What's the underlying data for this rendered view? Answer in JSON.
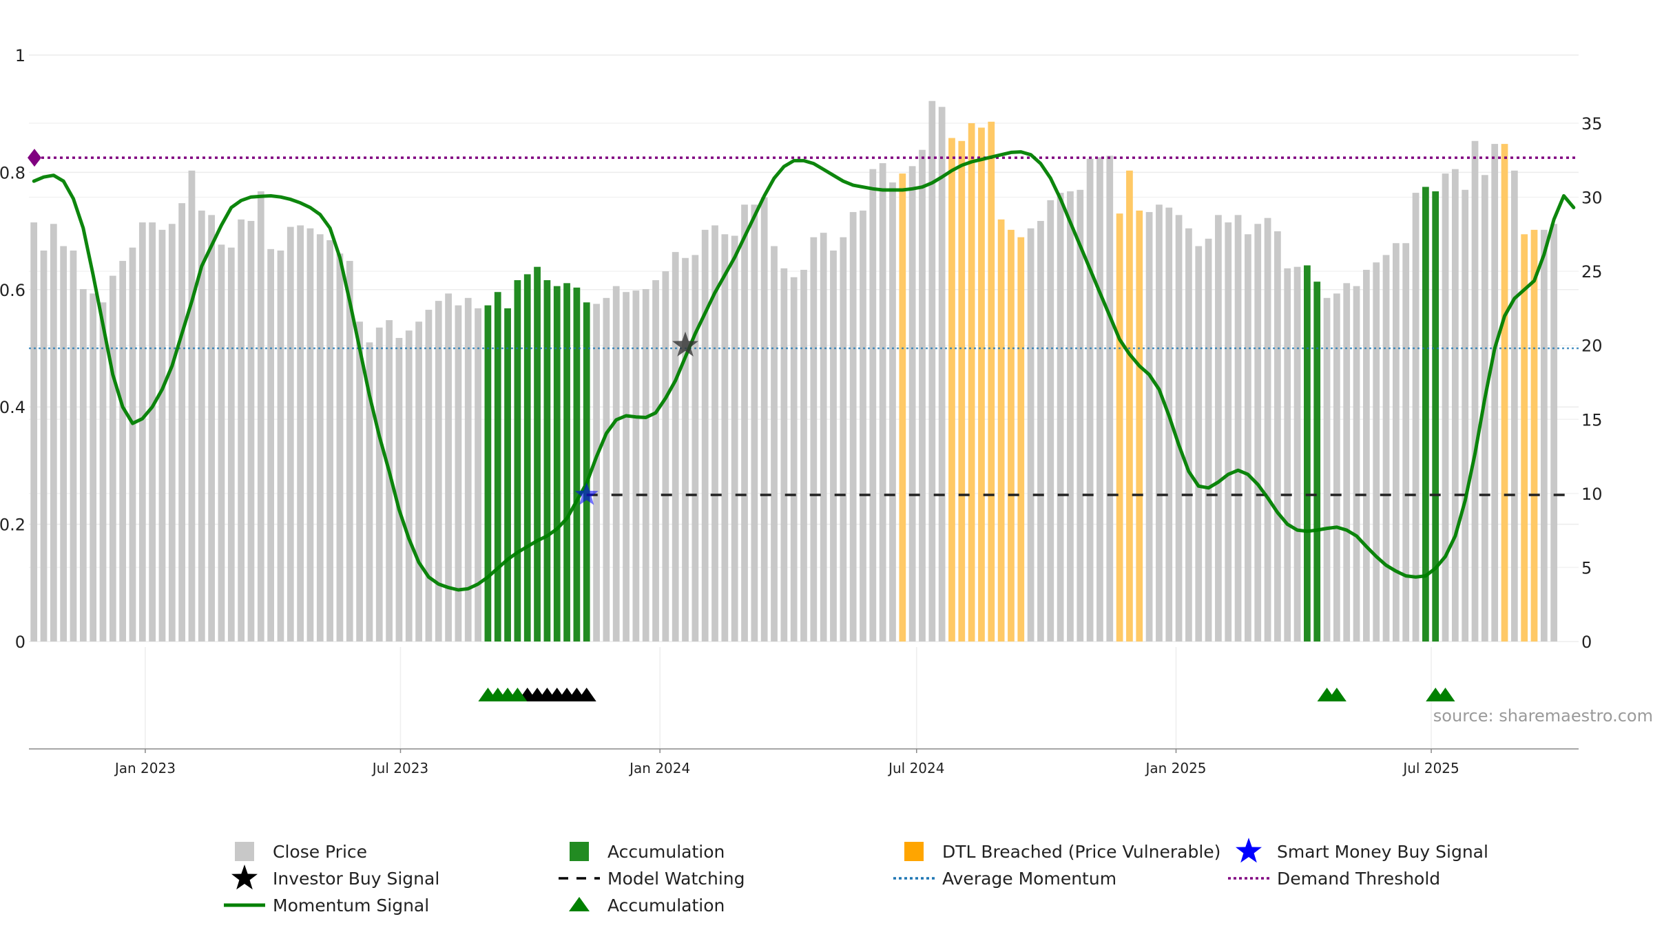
{
  "chart_data": {
    "type": "bar",
    "x_start": "2022-10-14",
    "weeks": 157,
    "left_axis": {
      "ticks": [
        0,
        0.2,
        0.4,
        0.6,
        0.8,
        1
      ],
      "tick_labels": [
        "0",
        "0.2",
        "0.4",
        "0.6",
        "0.8",
        "1"
      ],
      "ylim": [
        0,
        1
      ]
    },
    "right_axis": {
      "ticks": [
        0,
        5,
        10,
        15,
        20,
        25,
        30,
        35
      ],
      "tick_labels": [
        "0",
        "5",
        "10",
        "15",
        "20",
        "25",
        "30",
        "35"
      ],
      "ylim": [
        0,
        39.6
      ]
    },
    "x_ticks": [
      {
        "date": "2023-01-01",
        "label": "Jan 2023"
      },
      {
        "date": "2023-07-01",
        "label": "Jul 2023"
      },
      {
        "date": "2024-01-01",
        "label": "Jan 2024"
      },
      {
        "date": "2024-07-01",
        "label": "Jul 2024"
      },
      {
        "date": "2025-01-01",
        "label": "Jan 2025"
      },
      {
        "date": "2025-07-01",
        "label": "Jul 2025"
      }
    ],
    "close_price": [
      28.3,
      26.4,
      28.2,
      26.7,
      26.4,
      23.8,
      23.5,
      22.9,
      24.7,
      25.7,
      26.6,
      28.3,
      28.3,
      27.8,
      28.2,
      29.6,
      31.8,
      29.1,
      28.8,
      26.8,
      26.6,
      28.5,
      28.4,
      30.4,
      26.5,
      26.4,
      28.0,
      28.1,
      27.9,
      27.5,
      27.1,
      26.2,
      25.7,
      21.6,
      20.2,
      21.2,
      21.7,
      20.5,
      21.0,
      21.6,
      22.4,
      23.0,
      23.5,
      22.7,
      23.2,
      22.5,
      22.7,
      23.6,
      22.5,
      24.4,
      24.8,
      25.3,
      24.4,
      24.0,
      24.2,
      23.9,
      22.9,
      22.8,
      23.2,
      24.0,
      23.6,
      23.7,
      23.8,
      24.4,
      25.0,
      26.3,
      25.9,
      26.1,
      27.8,
      28.1,
      27.5,
      27.4,
      29.5,
      29.5,
      30.0,
      26.7,
      25.2,
      24.6,
      25.1,
      27.3,
      27.6,
      26.4,
      27.3,
      29.0,
      29.1,
      31.9,
      32.3,
      31.0,
      31.6,
      32.1,
      33.2,
      36.5,
      36.1,
      34.0,
      33.8,
      35.0,
      34.7,
      35.1,
      28.5,
      27.8,
      27.3,
      27.9,
      28.4,
      29.8,
      30.3,
      30.4,
      30.5,
      32.6,
      32.7,
      32.8,
      28.9,
      31.8,
      29.1,
      29.0,
      29.5,
      29.3,
      28.8,
      27.9,
      26.7,
      27.2,
      28.8,
      28.3,
      28.8,
      27.5,
      28.2,
      28.6,
      27.7,
      25.2,
      25.3,
      25.4,
      24.3,
      23.2,
      23.5,
      24.2,
      24.0,
      25.1,
      25.6,
      26.1,
      26.9,
      26.9,
      30.3,
      30.7,
      30.4,
      31.6,
      31.9,
      30.5,
      33.8,
      31.5,
      33.6,
      33.6,
      31.8,
      27.5,
      27.8,
      27.8,
      28.2
    ],
    "bar_category": [
      0,
      0,
      0,
      0,
      0,
      0,
      0,
      0,
      0,
      0,
      0,
      0,
      0,
      0,
      0,
      0,
      0,
      0,
      0,
      0,
      0,
      0,
      0,
      0,
      0,
      0,
      0,
      0,
      0,
      0,
      0,
      0,
      0,
      0,
      0,
      0,
      0,
      0,
      0,
      0,
      0,
      0,
      0,
      0,
      0,
      0,
      1,
      1,
      1,
      1,
      1,
      1,
      1,
      1,
      1,
      1,
      1,
      0,
      0,
      0,
      0,
      0,
      0,
      0,
      0,
      0,
      0,
      0,
      0,
      0,
      0,
      0,
      0,
      0,
      0,
      0,
      0,
      0,
      0,
      0,
      0,
      0,
      0,
      0,
      0,
      0,
      0,
      0,
      2,
      0,
      0,
      0,
      0,
      2,
      2,
      2,
      2,
      2,
      2,
      2,
      2,
      0,
      0,
      0,
      0,
      0,
      0,
      0,
      0,
      0,
      2,
      2,
      2,
      0,
      0,
      0,
      0,
      0,
      0,
      0,
      0,
      0,
      0,
      0,
      0,
      0,
      0,
      0,
      0,
      1,
      1,
      0,
      0,
      0,
      0,
      0,
      0,
      0,
      0,
      0,
      0,
      1,
      1,
      0,
      0,
      0,
      0,
      0,
      0,
      2,
      0,
      2,
      2,
      0,
      0,
      0,
      0
    ],
    "momentum_signal": [
      [
        0,
        0.785
      ],
      [
        1,
        0.792
      ],
      [
        2,
        0.795
      ],
      [
        3,
        0.785
      ],
      [
        4,
        0.755
      ],
      [
        5,
        0.705
      ],
      [
        6,
        0.625
      ],
      [
        7,
        0.54
      ],
      [
        8,
        0.455
      ],
      [
        9,
        0.4
      ],
      [
        10,
        0.372
      ],
      [
        11,
        0.38
      ],
      [
        12,
        0.4
      ],
      [
        13,
        0.43
      ],
      [
        14,
        0.47
      ],
      [
        15,
        0.525
      ],
      [
        16,
        0.58
      ],
      [
        17,
        0.64
      ],
      [
        18,
        0.675
      ],
      [
        19,
        0.71
      ],
      [
        20,
        0.74
      ],
      [
        21,
        0.752
      ],
      [
        22,
        0.758
      ],
      [
        23,
        0.759
      ],
      [
        24,
        0.76
      ],
      [
        25,
        0.758
      ],
      [
        26,
        0.754
      ],
      [
        27,
        0.748
      ],
      [
        28,
        0.74
      ],
      [
        29,
        0.728
      ],
      [
        30,
        0.705
      ],
      [
        31,
        0.655
      ],
      [
        32,
        0.58
      ],
      [
        33,
        0.5
      ],
      [
        34,
        0.42
      ],
      [
        35,
        0.35
      ],
      [
        36,
        0.29
      ],
      [
        37,
        0.225
      ],
      [
        38,
        0.175
      ],
      [
        39,
        0.135
      ],
      [
        40,
        0.11
      ],
      [
        41,
        0.098
      ],
      [
        42,
        0.092
      ],
      [
        43,
        0.088
      ],
      [
        44,
        0.09
      ],
      [
        45,
        0.098
      ],
      [
        46,
        0.11
      ],
      [
        47,
        0.125
      ],
      [
        48,
        0.14
      ],
      [
        49,
        0.152
      ],
      [
        50,
        0.162
      ],
      [
        51,
        0.172
      ],
      [
        52,
        0.18
      ],
      [
        53,
        0.192
      ],
      [
        54,
        0.21
      ],
      [
        55,
        0.24
      ],
      [
        56,
        0.27
      ],
      [
        57,
        0.315
      ],
      [
        58,
        0.355
      ],
      [
        59,
        0.378
      ],
      [
        60,
        0.385
      ],
      [
        61,
        0.383
      ],
      [
        62,
        0.382
      ],
      [
        63,
        0.39
      ],
      [
        64,
        0.415
      ],
      [
        65,
        0.445
      ],
      [
        66,
        0.485
      ],
      [
        67,
        0.525
      ],
      [
        68,
        0.56
      ],
      [
        69,
        0.595
      ],
      [
        70,
        0.625
      ],
      [
        71,
        0.655
      ],
      [
        72,
        0.69
      ],
      [
        73,
        0.725
      ],
      [
        74,
        0.76
      ],
      [
        75,
        0.79
      ],
      [
        76,
        0.81
      ],
      [
        77,
        0.82
      ],
      [
        78,
        0.82
      ],
      [
        79,
        0.815
      ],
      [
        80,
        0.805
      ],
      [
        81,
        0.795
      ],
      [
        82,
        0.785
      ],
      [
        83,
        0.778
      ],
      [
        84,
        0.775
      ],
      [
        85,
        0.772
      ],
      [
        86,
        0.77
      ],
      [
        87,
        0.77
      ],
      [
        88,
        0.77
      ],
      [
        89,
        0.772
      ],
      [
        90,
        0.775
      ],
      [
        91,
        0.782
      ],
      [
        92,
        0.792
      ],
      [
        93,
        0.803
      ],
      [
        94,
        0.812
      ],
      [
        95,
        0.818
      ],
      [
        96,
        0.822
      ],
      [
        97,
        0.826
      ],
      [
        98,
        0.83
      ],
      [
        99,
        0.834
      ],
      [
        100,
        0.835
      ],
      [
        101,
        0.83
      ],
      [
        102,
        0.815
      ],
      [
        103,
        0.79
      ],
      [
        104,
        0.755
      ],
      [
        105,
        0.715
      ],
      [
        106,
        0.675
      ],
      [
        107,
        0.635
      ],
      [
        108,
        0.595
      ],
      [
        109,
        0.555
      ],
      [
        110,
        0.515
      ],
      [
        111,
        0.49
      ],
      [
        112,
        0.47
      ],
      [
        113,
        0.455
      ],
      [
        114,
        0.43
      ],
      [
        115,
        0.385
      ],
      [
        116,
        0.335
      ],
      [
        117,
        0.29
      ],
      [
        118,
        0.265
      ],
      [
        119,
        0.262
      ],
      [
        120,
        0.272
      ],
      [
        121,
        0.285
      ],
      [
        122,
        0.292
      ],
      [
        123,
        0.285
      ],
      [
        124,
        0.268
      ],
      [
        125,
        0.245
      ],
      [
        126,
        0.22
      ],
      [
        127,
        0.2
      ],
      [
        128,
        0.19
      ],
      [
        129,
        0.188
      ],
      [
        130,
        0.19
      ],
      [
        131,
        0.193
      ],
      [
        132,
        0.195
      ],
      [
        133,
        0.19
      ],
      [
        134,
        0.18
      ],
      [
        135,
        0.162
      ],
      [
        136,
        0.145
      ],
      [
        137,
        0.13
      ],
      [
        138,
        0.12
      ],
      [
        139,
        0.112
      ],
      [
        140,
        0.11
      ],
      [
        141,
        0.112
      ],
      [
        142,
        0.125
      ],
      [
        143,
        0.145
      ],
      [
        144,
        0.18
      ],
      [
        145,
        0.24
      ],
      [
        146,
        0.32
      ],
      [
        147,
        0.415
      ],
      [
        148,
        0.5
      ],
      [
        149,
        0.555
      ],
      [
        150,
        0.585
      ],
      [
        151,
        0.6
      ],
      [
        152,
        0.615
      ],
      [
        153,
        0.66
      ],
      [
        154,
        0.72
      ],
      [
        155,
        0.76
      ],
      [
        156,
        0.74
      ]
    ],
    "model_watching": {
      "level": 0.25,
      "from_week": 56,
      "to_week": 156
    },
    "average_momentum": 0.5,
    "demand_threshold": 0.825,
    "investor_buy_signals": [
      {
        "week": 66,
        "value": 0.505
      }
    ],
    "smart_money_buy_signals": [
      {
        "week": 56,
        "value": 0.25
      }
    ],
    "accumulation_markers": {
      "green_weeks": [
        46,
        47,
        48,
        49,
        131,
        132,
        142,
        143
      ],
      "black_weeks": [
        50,
        51,
        52,
        53,
        54,
        55,
        56
      ]
    },
    "legend": [
      {
        "label": "Close Price",
        "symbol": "square",
        "color": "#c8c8c8"
      },
      {
        "label": "Accumulation",
        "symbol": "square",
        "color": "#228b22"
      },
      {
        "label": "DTL Breached (Price Vulnerable)",
        "symbol": "square",
        "color": "#ffa500"
      },
      {
        "label": "Smart Money Buy Signal",
        "symbol": "star",
        "color": "#0000ff"
      },
      {
        "label": "Investor Buy Signal",
        "symbol": "star",
        "color": "#000000"
      },
      {
        "label": "Model Watching",
        "symbol": "dash",
        "color": "#000000"
      },
      {
        "label": "Average Momentum",
        "symbol": "dot",
        "color": "#1f77b4"
      },
      {
        "label": "Demand Threshold",
        "symbol": "dot",
        "color": "#800080"
      },
      {
        "label": "Momentum Signal",
        "symbol": "line",
        "color": "#008000"
      },
      {
        "label": "Accumulation",
        "symbol": "triangle",
        "color": "#008000"
      }
    ],
    "colors": {
      "close": "#c8c8c8",
      "accumulation": "#228b22",
      "dtl": "#ffc966",
      "momentum": "#008000",
      "average": "#1f77b4",
      "demand": "#800080",
      "smart_money": "#0000ff",
      "investor": "#000000"
    },
    "grid": true
  },
  "source_note": "source: sharemaestro.com"
}
